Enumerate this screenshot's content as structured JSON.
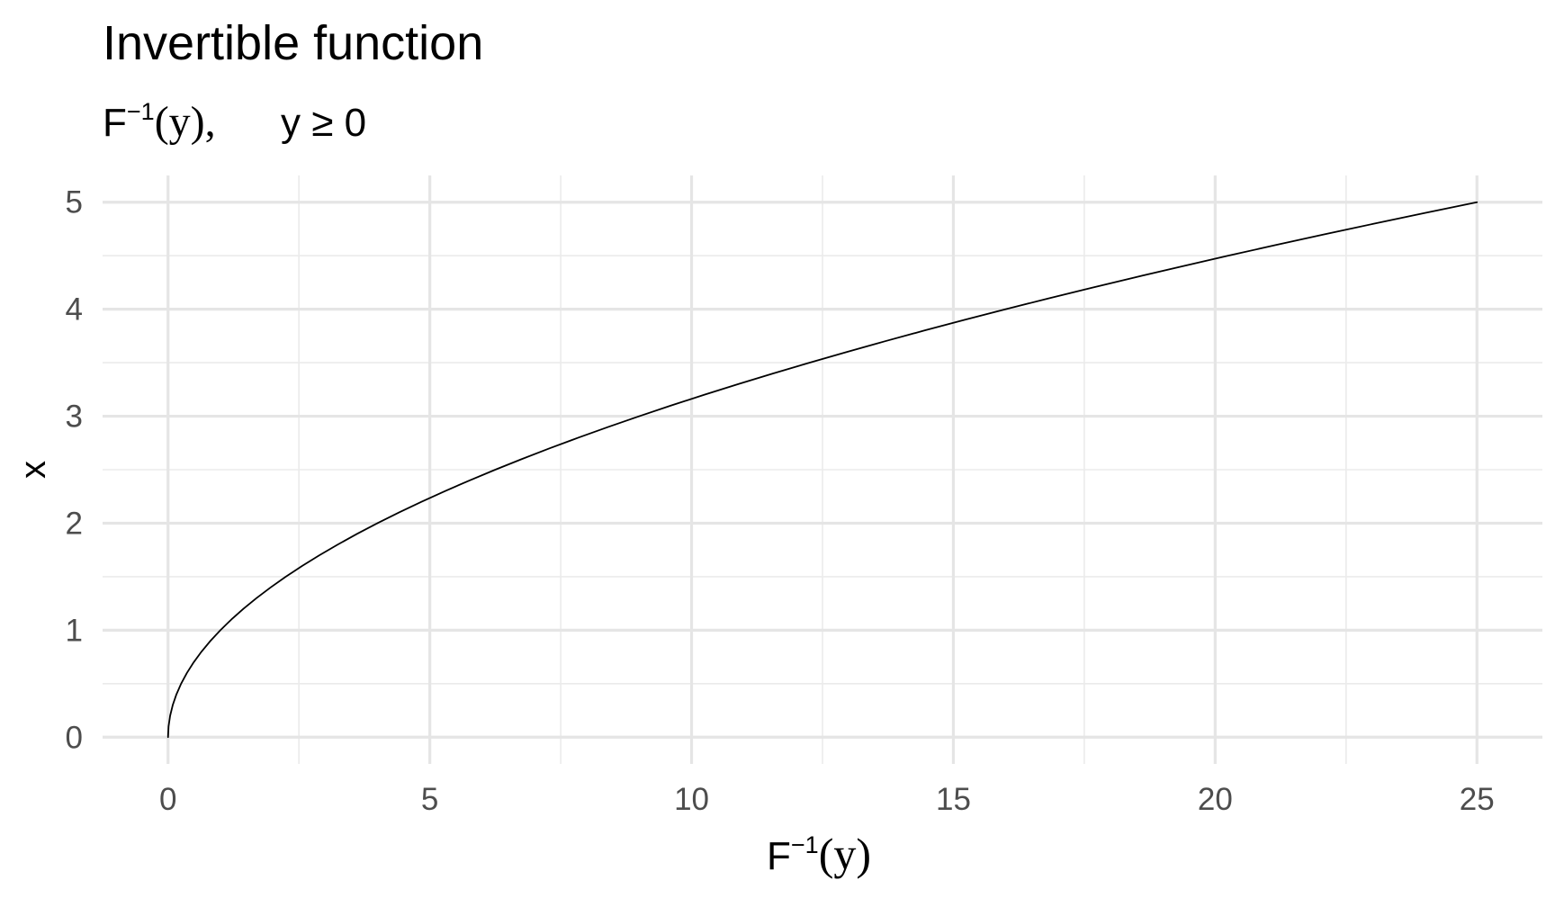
{
  "chart_data": {
    "type": "line",
    "title": "Invertible function",
    "subtitle": {
      "base": "F",
      "sup": "−1",
      "arg": "(y),",
      "condition": "y ≥ 0"
    },
    "xlabel": {
      "base": "F",
      "sup": "−1",
      "arg": "(y)"
    },
    "ylabel": "x",
    "xlim": [
      -1.25,
      26.25
    ],
    "ylim": [
      -0.25,
      5.25
    ],
    "x_ticks": [
      0,
      5,
      10,
      15,
      20,
      25
    ],
    "x_tick_labels": [
      "0",
      "5",
      "10",
      "15",
      "20",
      "25"
    ],
    "y_ticks": [
      0,
      1,
      2,
      3,
      4,
      5
    ],
    "y_tick_labels": [
      "0",
      "1",
      "2",
      "3",
      "4",
      "5"
    ],
    "x_minor_ticks": [
      2.5,
      7.5,
      12.5,
      17.5,
      22.5
    ],
    "y_minor_ticks": [
      0.5,
      1.5,
      2.5,
      3.5,
      4.5
    ],
    "grid": true,
    "legend": "none",
    "series": [
      {
        "line_color": "#000000",
        "x": [
          0,
          0.01,
          0.04,
          0.09,
          0.16,
          0.25,
          0.36,
          0.49,
          0.64,
          0.81,
          1,
          1.21,
          1.44,
          1.69,
          1.96,
          2.25,
          2.56,
          2.89,
          3.24,
          3.61,
          4,
          4.41,
          4.84,
          5.29,
          5.76,
          6.25,
          6.76,
          7.29,
          7.84,
          8.41,
          9,
          9.61,
          10.24,
          10.89,
          11.56,
          12.25,
          12.96,
          13.69,
          14.44,
          15.21,
          16,
          16.81,
          17.64,
          18.49,
          19.36,
          20.25,
          21.16,
          22.09,
          23.04,
          24.01,
          25
        ],
        "y": [
          0,
          0.1,
          0.2,
          0.3,
          0.4,
          0.5,
          0.6,
          0.7,
          0.8,
          0.9,
          1,
          1.1,
          1.2,
          1.3,
          1.4,
          1.5,
          1.6,
          1.7,
          1.8,
          1.9,
          2,
          2.1,
          2.2,
          2.3,
          2.4,
          2.5,
          2.6,
          2.7,
          2.8,
          2.9,
          3,
          3.1,
          3.2,
          3.3,
          3.4,
          3.5,
          3.6,
          3.7,
          3.8,
          3.9,
          4,
          4.1,
          4.2,
          4.3,
          4.4,
          4.5,
          4.6,
          4.7,
          4.8,
          4.9,
          5
        ]
      }
    ]
  }
}
